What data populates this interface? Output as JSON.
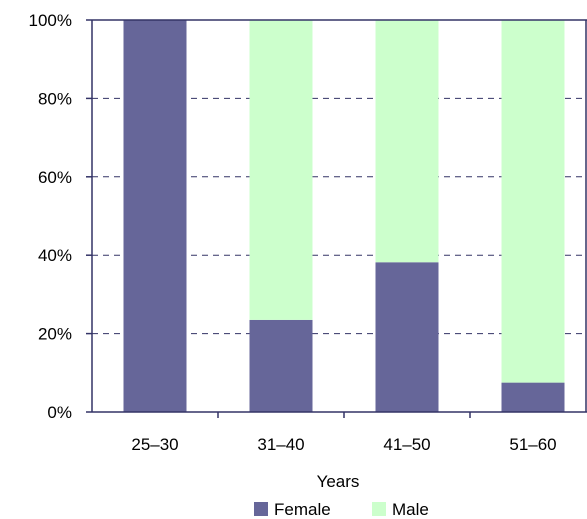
{
  "chart_data": {
    "type": "bar",
    "stacked": true,
    "categories": [
      "25–30",
      "31–40",
      "41–50",
      "51–60"
    ],
    "series": [
      {
        "name": "Female",
        "values": [
          100,
          23.5,
          38.2,
          7.5
        ],
        "color": "#666699"
      },
      {
        "name": "Male",
        "values": [
          0,
          76.5,
          61.8,
          92.5
        ],
        "color": "#ccffcc"
      }
    ],
    "xlabel": "Years",
    "ylabel": "",
    "ylim": [
      0,
      100
    ],
    "yticks": [
      "0%",
      "20%",
      "40%",
      "60%",
      "80%",
      "100%"
    ],
    "grid": true,
    "legend": "bottom",
    "frame_color": "#333366",
    "grid_color": "#333366"
  }
}
